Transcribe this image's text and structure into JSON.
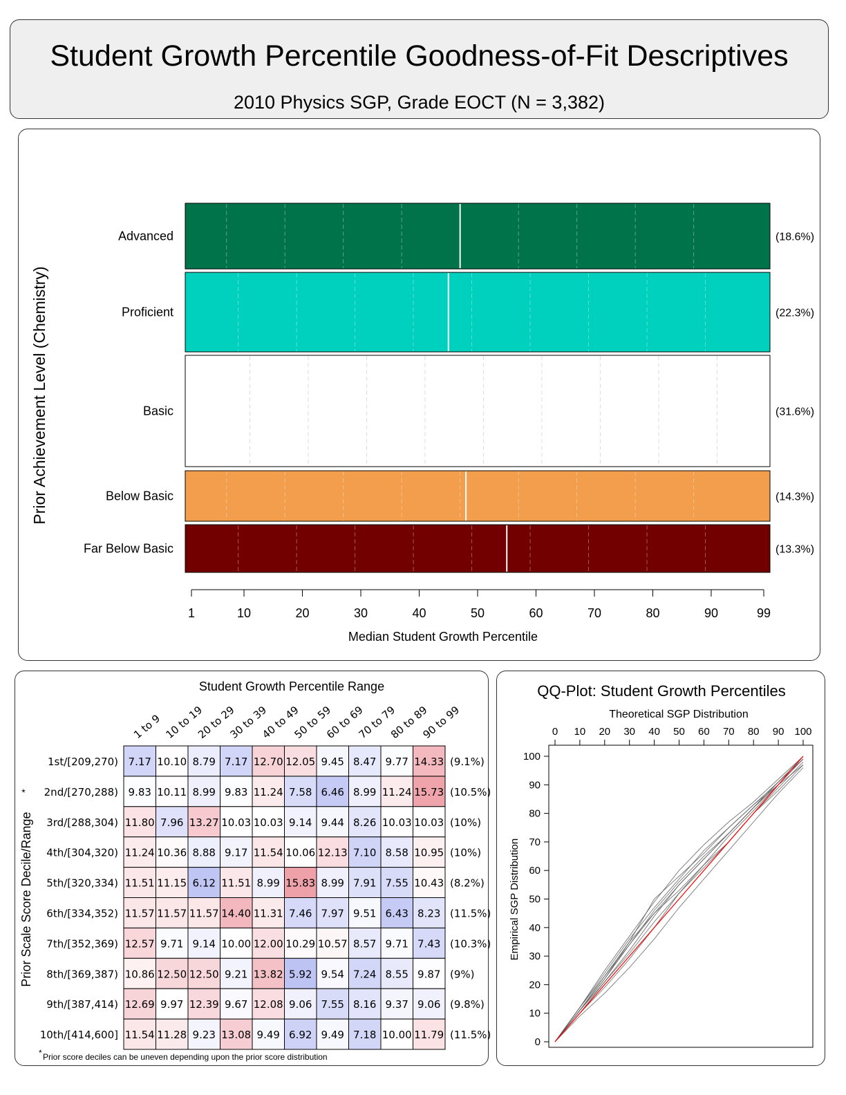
{
  "header": {
    "title": "Student Growth Percentile Goodness-of-Fit Descriptives",
    "subtitle": "2010 Physics SGP, Grade EOCT (N = 3,382)"
  },
  "chart_data": [
    {
      "type": "bar",
      "ylabel": "Prior Achievement Level (Chemistry)",
      "xlabel": "Median Student Growth Percentile",
      "xlim": [
        1,
        99
      ],
      "x_ticks": [
        "1",
        "10",
        "20",
        "30",
        "40",
        "50",
        "60",
        "70",
        "80",
        "90",
        "99"
      ],
      "categories": [
        "Advanced",
        "Proficient",
        "Basic",
        "Below Basic",
        "Far Below Basic"
      ],
      "percentages": [
        "(18.6%)",
        "(22.3%)",
        "(31.6%)",
        "(14.3%)",
        "(13.3%)"
      ],
      "shares": [
        18.6,
        22.3,
        31.6,
        14.3,
        13.3
      ],
      "median_sgp": [
        47,
        45,
        45,
        48,
        55
      ],
      "colors": [
        "#00734A",
        "#00D1BE",
        "#FFFFFF",
        "#F29E4C",
        "#730000"
      ],
      "grid": true
    },
    {
      "type": "heatmap",
      "title": "Student Growth Percentile Range",
      "ylabel": "Prior Scale Score Decile/Range",
      "columns": [
        "1 to 9",
        "10 to 19",
        "20 to 29",
        "30 to 39",
        "40 to 49",
        "50 to 59",
        "60 to 69",
        "70 to 79",
        "80 to 89",
        "90 to 99"
      ],
      "rows": [
        {
          "label": "1st/[209,270)",
          "pct": "(9.1%)",
          "values": [
            "7.17",
            "10.10",
            "8.79",
            "7.17",
            "12.70",
            "12.05",
            "9.45",
            "8.47",
            "9.77",
            "14.33"
          ]
        },
        {
          "label": "2nd/[270,288)",
          "pct": "(10.5%)",
          "values": [
            "9.83",
            "10.11",
            "8.99",
            "9.83",
            "11.24",
            "7.58",
            "6.46",
            "8.99",
            "11.24",
            "15.73"
          ]
        },
        {
          "label": "3rd/[288,304)",
          "pct": "(10%)",
          "values": [
            "11.80",
            "7.96",
            "13.27",
            "10.03",
            "10.03",
            "9.14",
            "9.44",
            "8.26",
            "10.03",
            "10.03"
          ]
        },
        {
          "label": "4th/[304,320)",
          "pct": "(10%)",
          "values": [
            "11.24",
            "10.36",
            "8.88",
            "9.17",
            "11.54",
            "10.06",
            "12.13",
            "7.10",
            "8.58",
            "10.95"
          ]
        },
        {
          "label": "5th/[320,334)",
          "pct": "(8.2%)",
          "values": [
            "11.51",
            "11.15",
            "6.12",
            "11.51",
            "8.99",
            "15.83",
            "8.99",
            "7.91",
            "7.55",
            "10.43"
          ]
        },
        {
          "label": "6th/[334,352)",
          "pct": "(11.5%)",
          "values": [
            "11.57",
            "11.57",
            "11.57",
            "14.40",
            "11.31",
            "7.46",
            "7.97",
            "9.51",
            "6.43",
            "8.23"
          ]
        },
        {
          "label": "7th/[352,369)",
          "pct": "(10.3%)",
          "values": [
            "12.57",
            "9.71",
            "9.14",
            "10.00",
            "12.00",
            "10.29",
            "10.57",
            "8.57",
            "9.71",
            "7.43"
          ]
        },
        {
          "label": "8th/[369,387)",
          "pct": "(9%)",
          "values": [
            "10.86",
            "12.50",
            "12.50",
            "9.21",
            "13.82",
            "5.92",
            "9.54",
            "7.24",
            "8.55",
            "9.87"
          ]
        },
        {
          "label": "9th/[387,414)",
          "pct": "(9.8%)",
          "values": [
            "12.69",
            "9.97",
            "12.39",
            "9.67",
            "12.08",
            "9.06",
            "7.55",
            "8.16",
            "9.37",
            "9.06"
          ]
        },
        {
          "label": "10th/[414,600]",
          "pct": "(11.5%)",
          "values": [
            "11.54",
            "11.28",
            "9.23",
            "13.08",
            "9.49",
            "6.92",
            "9.49",
            "7.18",
            "10.00",
            "11.79"
          ]
        }
      ],
      "asterisk": "*",
      "footnote_mark": "*",
      "footnote": "Prior score deciles can be uneven depending upon the prior score distribution",
      "low_color": "#4F5FE0",
      "high_color": "#E04F5F"
    },
    {
      "type": "line",
      "title": "QQ-Plot: Student Growth Percentiles",
      "xlabel": "Theoretical SGP Distribution",
      "ylabel": "Empirical SGP Distribution",
      "xlim": [
        0,
        100
      ],
      "ylim": [
        0,
        100
      ],
      "x_ticks": [
        "0",
        "10",
        "20",
        "30",
        "40",
        "50",
        "60",
        "70",
        "80",
        "90",
        "100"
      ],
      "y_ticks": [
        "0",
        "10",
        "20",
        "30",
        "40",
        "50",
        "60",
        "70",
        "80",
        "90",
        "100"
      ],
      "series": [
        {
          "values": [
            [
              0,
              0
            ],
            [
              10,
              11
            ],
            [
              20,
              22
            ],
            [
              30,
              35
            ],
            [
              40,
              50
            ],
            [
              50,
              58
            ],
            [
              60,
              66
            ],
            [
              70,
              75
            ],
            [
              80,
              83
            ],
            [
              90,
              90
            ],
            [
              100,
              100
            ]
          ]
        },
        {
          "values": [
            [
              0,
              0
            ],
            [
              10,
              12
            ],
            [
              20,
              25
            ],
            [
              30,
              37
            ],
            [
              40,
              49
            ],
            [
              50,
              60
            ],
            [
              60,
              69
            ],
            [
              70,
              77
            ],
            [
              80,
              84
            ],
            [
              90,
              92
            ],
            [
              100,
              100
            ]
          ]
        },
        {
          "values": [
            [
              0,
              0
            ],
            [
              10,
              10
            ],
            [
              20,
              19
            ],
            [
              30,
              29
            ],
            [
              40,
              40
            ],
            [
              50,
              52
            ],
            [
              60,
              61
            ],
            [
              70,
              70
            ],
            [
              80,
              80
            ],
            [
              90,
              89
            ],
            [
              100,
              98
            ]
          ]
        },
        {
          "values": [
            [
              0,
              0
            ],
            [
              10,
              11
            ],
            [
              20,
              23
            ],
            [
              30,
              34
            ],
            [
              40,
              46
            ],
            [
              50,
              56
            ],
            [
              60,
              65
            ],
            [
              70,
              73
            ],
            [
              80,
              82
            ],
            [
              90,
              91
            ],
            [
              100,
              99
            ]
          ]
        },
        {
          "values": [
            [
              0,
              0
            ],
            [
              10,
              9
            ],
            [
              20,
              17
            ],
            [
              30,
              26
            ],
            [
              40,
              36
            ],
            [
              50,
              47
            ],
            [
              60,
              57
            ],
            [
              70,
              67
            ],
            [
              80,
              77
            ],
            [
              90,
              87
            ],
            [
              100,
              96
            ]
          ]
        },
        {
          "values": [
            [
              0,
              0
            ],
            [
              10,
              12
            ],
            [
              20,
              24
            ],
            [
              30,
              36
            ],
            [
              40,
              47
            ],
            [
              50,
              57
            ],
            [
              60,
              67
            ],
            [
              70,
              75
            ],
            [
              80,
              83
            ],
            [
              90,
              91
            ],
            [
              100,
              100
            ]
          ]
        },
        {
          "values": [
            [
              0,
              0
            ],
            [
              10,
              10
            ],
            [
              20,
              21
            ],
            [
              30,
              32
            ],
            [
              40,
              44
            ],
            [
              50,
              55
            ],
            [
              60,
              64
            ],
            [
              70,
              73
            ],
            [
              80,
              82
            ],
            [
              90,
              90
            ],
            [
              100,
              99
            ]
          ]
        },
        {
          "values": [
            [
              0,
              0
            ],
            [
              10,
              11
            ],
            [
              20,
              21
            ],
            [
              30,
              31
            ],
            [
              40,
              42
            ],
            [
              50,
              52
            ],
            [
              60,
              62
            ],
            [
              70,
              72
            ],
            [
              80,
              81
            ],
            [
              90,
              90
            ],
            [
              100,
              97
            ]
          ]
        },
        {
          "values": [
            [
              0,
              0
            ],
            [
              10,
              12
            ],
            [
              20,
              23
            ],
            [
              30,
              35
            ],
            [
              40,
              45
            ],
            [
              50,
              53
            ],
            [
              60,
              62
            ],
            [
              70,
              70
            ],
            [
              80,
              80
            ],
            [
              90,
              88
            ],
            [
              100,
              97
            ]
          ]
        },
        {
          "values": [
            [
              0,
              0
            ],
            [
              10,
              11
            ],
            [
              20,
              22
            ],
            [
              30,
              34
            ],
            [
              40,
              45
            ],
            [
              50,
              55
            ],
            [
              60,
              64
            ],
            [
              70,
              73
            ],
            [
              80,
              82
            ],
            [
              90,
              91
            ],
            [
              100,
              99
            ]
          ]
        }
      ],
      "reference_line": [
        [
          0,
          0
        ],
        [
          100,
          100
        ]
      ],
      "reference_color": "#FF0000",
      "series_color": "#555555"
    }
  ]
}
